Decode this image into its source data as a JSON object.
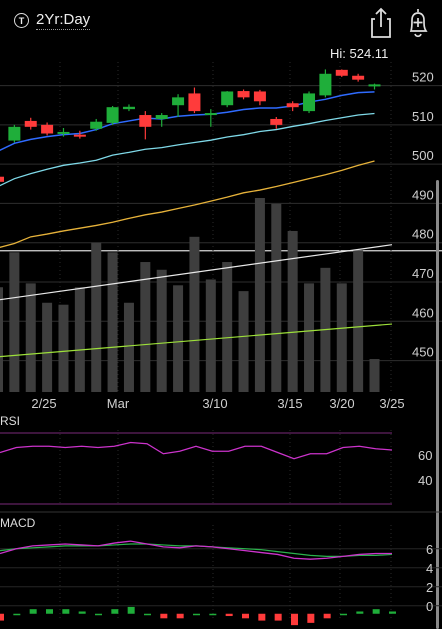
{
  "header": {
    "period_icon": "T",
    "period_label": "2Yr:Day",
    "share_icon": "share-icon",
    "alert_icon": "bell-plus-icon"
  },
  "hi_label": "Hi: 524.11",
  "colors": {
    "up": "#1fae3a",
    "down": "#ff3b3b",
    "ma_fast": "#2f6bff",
    "ma_mid": "#7fd9e8",
    "ma_slow": "#e6b23a",
    "trend_upper": "#e8e8e8",
    "trend_lower": "#9de03a",
    "rsi": "#cc33cc",
    "macd": "#cc33cc",
    "signal": "#2bb24c"
  },
  "chart_data": [
    {
      "type": "candlestick",
      "title": "",
      "ylim": [
        442,
        526
      ],
      "y_ticks": [
        520,
        510,
        500,
        490,
        480,
        470,
        460,
        450
      ],
      "x_ticks": [
        "2/25",
        "Mar",
        "3/10",
        "3/15",
        "3/20",
        "3/25"
      ],
      "hi": 524.11,
      "candles": [
        {
          "o": 496.8,
          "h": 497.5,
          "l": 495.0,
          "c": 495.5
        },
        {
          "o": 506.0,
          "h": 510.0,
          "l": 505.5,
          "c": 509.5
        },
        {
          "o": 511.0,
          "h": 511.8,
          "l": 508.8,
          "c": 509.5
        },
        {
          "o": 510.0,
          "h": 510.6,
          "l": 507.3,
          "c": 507.8
        },
        {
          "o": 508.0,
          "h": 509.2,
          "l": 507.0,
          "c": 508.2
        },
        {
          "o": 507.5,
          "h": 508.5,
          "l": 506.5,
          "c": 507.0
        },
        {
          "o": 509.0,
          "h": 511.5,
          "l": 508.5,
          "c": 510.8
        },
        {
          "o": 510.5,
          "h": 514.8,
          "l": 510.0,
          "c": 514.5
        },
        {
          "o": 514.0,
          "h": 515.2,
          "l": 513.5,
          "c": 514.6
        },
        {
          "o": 512.5,
          "h": 513.5,
          "l": 506.3,
          "c": 509.5
        },
        {
          "o": 511.5,
          "h": 513.0,
          "l": 509.5,
          "c": 512.5
        },
        {
          "o": 515.0,
          "h": 517.8,
          "l": 512.0,
          "c": 517.0
        },
        {
          "o": 518.0,
          "h": 519.5,
          "l": 513.0,
          "c": 513.5
        },
        {
          "o": 512.5,
          "h": 514.0,
          "l": 509.5,
          "c": 513.0
        },
        {
          "o": 515.0,
          "h": 518.6,
          "l": 514.5,
          "c": 518.5
        },
        {
          "o": 518.6,
          "h": 519.0,
          "l": 516.5,
          "c": 517.0
        },
        {
          "o": 518.5,
          "h": 518.9,
          "l": 515.0,
          "c": 516.0
        },
        {
          "o": 511.5,
          "h": 512.0,
          "l": 509.0,
          "c": 510.0
        },
        {
          "o": 515.5,
          "h": 516.0,
          "l": 513.5,
          "c": 514.5
        },
        {
          "o": 513.5,
          "h": 518.5,
          "l": 513.0,
          "c": 518.0
        },
        {
          "o": 517.5,
          "h": 524.11,
          "l": 517.0,
          "c": 523.0
        },
        {
          "o": 524.0,
          "h": 524.11,
          "l": 522.2,
          "c": 522.5
        },
        {
          "o": 522.5,
          "h": 523.0,
          "l": 521.0,
          "c": 521.5
        },
        {
          "o": 520.0,
          "h": 520.5,
          "l": 519.0,
          "c": 520.3
        }
      ],
      "ma_fast": [
        503.3,
        505.3,
        506.3,
        507.0,
        507.5,
        507.8,
        508.8,
        510.3,
        511.0,
        511.7,
        511.5,
        512.2,
        512.5,
        512.7,
        513.2,
        513.9,
        514.3,
        514.3,
        514.8,
        515.8,
        516.5,
        517.5,
        518.2,
        518.4
      ],
      "ma_mid": [
        494.3,
        496.3,
        497.6,
        498.7,
        499.7,
        500.3,
        501.0,
        502.3,
        503.0,
        503.8,
        504.2,
        504.9,
        505.5,
        506.1,
        506.9,
        507.5,
        508.3,
        508.8,
        509.6,
        510.3,
        511.1,
        511.8,
        512.5,
        512.9
      ],
      "ma_slow": [
        478.7,
        479.8,
        481.5,
        482.2,
        483.0,
        483.7,
        484.4,
        485.2,
        486.2,
        487.1,
        487.8,
        488.7,
        489.6,
        490.6,
        491.6,
        492.7,
        493.4,
        494.3,
        495.3,
        496.3,
        497.3,
        498.4,
        499.7,
        500.8
      ],
      "volume": [
        0.54,
        0.72,
        0.56,
        0.46,
        0.45,
        0.54,
        0.77,
        0.72,
        0.46,
        0.67,
        0.63,
        0.55,
        0.8,
        0.58,
        0.67,
        0.52,
        1.0,
        0.97,
        0.83,
        0.56,
        0.64,
        0.56,
        0.73,
        0.17
      ],
      "trend_upper": {
        "from": 465.5,
        "to": 479.5
      },
      "trend_lower": {
        "from": 451.0,
        "to": 459.3
      }
    },
    {
      "type": "line",
      "title": "RSI",
      "y_ticks": [
        60,
        40
      ],
      "ylim": [
        20,
        80
      ],
      "values": [
        62,
        66,
        67,
        67,
        66,
        67,
        66,
        67,
        70,
        69,
        61,
        63,
        67,
        63,
        63,
        67,
        67,
        62,
        57,
        61,
        61,
        66,
        67,
        65,
        64
      ]
    },
    {
      "type": "line",
      "title": "MACD",
      "y_ticks": [
        6,
        4,
        2,
        0
      ],
      "ylim": [
        -1.5,
        8.5
      ],
      "macd": [
        5.5,
        6.0,
        6.3,
        6.4,
        6.5,
        6.4,
        6.3,
        6.6,
        6.8,
        6.5,
        6.2,
        6.1,
        6.3,
        6.2,
        6.0,
        5.8,
        5.6,
        5.4,
        5.0,
        4.9,
        5.0,
        5.2,
        5.4,
        5.5,
        5.5
      ],
      "signal": [
        5.8,
        6.0,
        6.1,
        6.2,
        6.3,
        6.3,
        6.3,
        6.4,
        6.5,
        6.5,
        6.4,
        6.3,
        6.3,
        6.2,
        6.1,
        6.0,
        5.9,
        5.7,
        5.5,
        5.3,
        5.2,
        5.2,
        5.3,
        5.3,
        5.4
      ],
      "hist": [
        -0.3,
        0.0,
        0.2,
        0.2,
        0.2,
        0.1,
        0.0,
        0.2,
        0.3,
        0.0,
        -0.2,
        -0.2,
        0.0,
        0.0,
        -0.1,
        -0.2,
        -0.3,
        -0.3,
        -0.5,
        -0.4,
        -0.2,
        0.0,
        0.1,
        0.2,
        0.1
      ]
    }
  ]
}
